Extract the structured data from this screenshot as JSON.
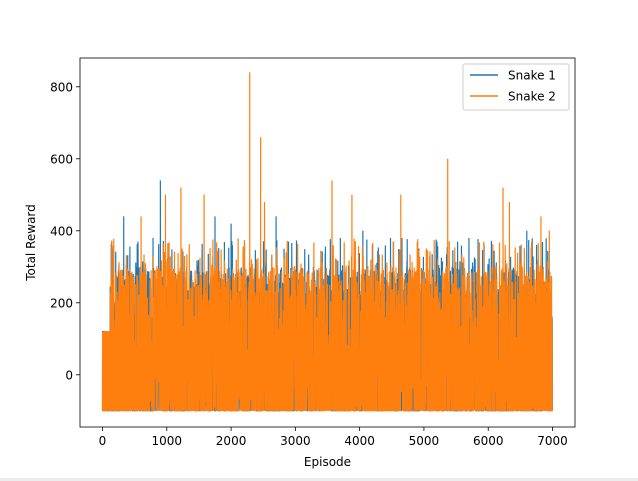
{
  "chart_data": {
    "type": "line",
    "title": "",
    "xlabel": "Episode",
    "ylabel": "Total Reward",
    "xlim": [
      -350,
      7350
    ],
    "ylim": [
      -145,
      880
    ],
    "xticks": [
      0,
      1000,
      2000,
      3000,
      4000,
      5000,
      6000,
      7000
    ],
    "xtick_labels": [
      "0",
      "1000",
      "2000",
      "3000",
      "4000",
      "5000",
      "6000",
      "7000"
    ],
    "yticks": [
      0,
      200,
      400,
      600,
      800
    ],
    "ytick_labels": [
      "0",
      "200",
      "400",
      "600",
      "800"
    ],
    "grid": false,
    "legend": {
      "position": "top-right"
    },
    "noise": {
      "n_points": 7000,
      "low": -100,
      "typical_high": 300,
      "seed_snake1": 7,
      "seed_snake2": 13
    },
    "series": [
      {
        "name": "Snake 1",
        "color": "#1f77b4",
        "peaks": [
          [
            330,
            440
          ],
          [
            900,
            540
          ],
          [
            1750,
            440
          ],
          [
            2000,
            420
          ],
          [
            2700,
            440
          ],
          [
            3700,
            380
          ],
          [
            4050,
            400
          ],
          [
            5700,
            380
          ],
          [
            6600,
            400
          ]
        ]
      },
      {
        "name": "Snake 2",
        "color": "#ff7f0e",
        "peaks": [
          [
            600,
            440
          ],
          [
            980,
            500
          ],
          [
            1220,
            520
          ],
          [
            1580,
            500
          ],
          [
            2290,
            840
          ],
          [
            2460,
            660
          ],
          [
            2520,
            480
          ],
          [
            3570,
            540
          ],
          [
            3880,
            500
          ],
          [
            4640,
            500
          ],
          [
            5370,
            600
          ],
          [
            6230,
            520
          ],
          [
            6330,
            480
          ],
          [
            6820,
            440
          ],
          [
            6950,
            400
          ]
        ]
      }
    ]
  }
}
